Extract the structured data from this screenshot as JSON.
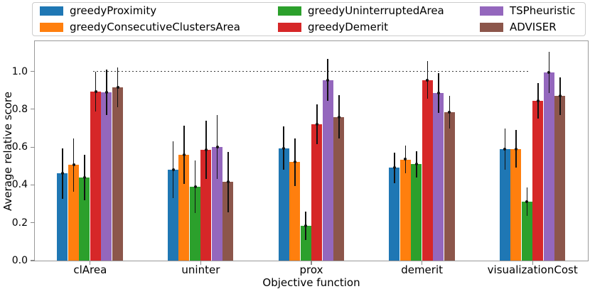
{
  "chart_data": {
    "type": "bar",
    "title": "",
    "xlabel": "Objective function",
    "ylabel": "Average relative score",
    "categories": [
      "clArea",
      "uninter",
      "prox",
      "demerit",
      "visualizationCost"
    ],
    "series": [
      {
        "name": "greedyProximity",
        "color": "#1f77b4",
        "values": [
          0.46,
          0.48,
          0.595,
          0.49,
          0.59
        ],
        "errors": [
          0.135,
          0.15,
          0.115,
          0.08,
          0.11
        ]
      },
      {
        "name": "greedyConsecutiveClustersArea",
        "color": "#ff7f0e",
        "values": [
          0.505,
          0.56,
          0.52,
          0.535,
          0.59
        ],
        "errors": [
          0.14,
          0.155,
          0.125,
          0.075,
          0.1
        ]
      },
      {
        "name": "greedyUninterruptedArea",
        "color": "#2ca02c",
        "values": [
          0.44,
          0.39,
          0.185,
          0.51,
          0.31
        ],
        "errors": [
          0.12,
          0.14,
          0.075,
          0.07,
          0.075
        ]
      },
      {
        "name": "greedyDemerit",
        "color": "#d62728",
        "values": [
          0.895,
          0.585,
          0.72,
          0.955,
          0.845
        ],
        "errors": [
          0.105,
          0.155,
          0.105,
          0.1,
          0.095
        ]
      },
      {
        "name": "TSPheuristic",
        "color": "#9467bd",
        "values": [
          0.89,
          0.6,
          0.955,
          0.885,
          0.995
        ],
        "errors": [
          0.12,
          0.17,
          0.11,
          0.105,
          0.11
        ]
      },
      {
        "name": "ADVISER",
        "color": "#8c564b",
        "values": [
          0.915,
          0.415,
          0.76,
          0.785,
          0.87
        ],
        "errors": [
          0.105,
          0.16,
          0.115,
          0.085,
          0.1
        ]
      }
    ],
    "ylim": [
      0,
      1.16
    ],
    "yticks": [
      0.0,
      0.2,
      0.4,
      0.6,
      0.8,
      1.0
    ],
    "ytick_format_decimals": 1,
    "grid": false,
    "legend_position": "top",
    "errorbars": true,
    "reference_line": {
      "y": 1.0,
      "style": "dotted",
      "x_start_frac": 0.105,
      "x_end_frac": 0.892
    }
  }
}
